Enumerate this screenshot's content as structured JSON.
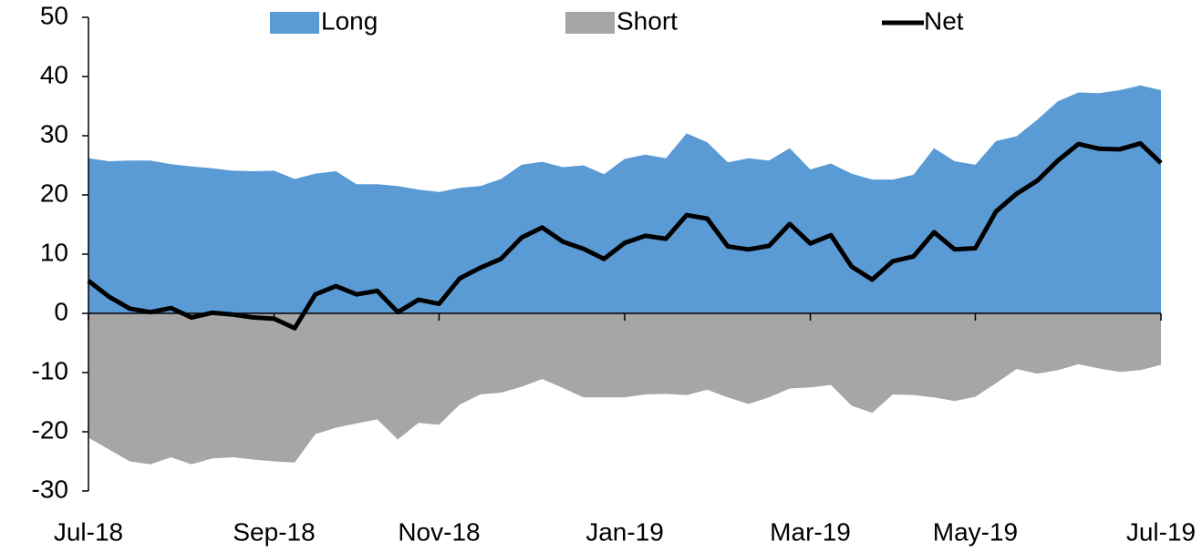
{
  "chart_data": {
    "type": "area",
    "categories": [
      "Jul-18",
      null,
      null,
      null,
      null,
      null,
      null,
      null,
      null,
      "Sep-18",
      null,
      null,
      null,
      null,
      null,
      null,
      null,
      "Nov-18",
      null,
      null,
      null,
      null,
      null,
      null,
      null,
      null,
      "Jan-19",
      null,
      null,
      null,
      null,
      null,
      null,
      null,
      null,
      "Mar-19",
      null,
      null,
      null,
      null,
      null,
      null,
      null,
      "May-19",
      null,
      null,
      null,
      null,
      null,
      null,
      null,
      null,
      "Jul-19"
    ],
    "series": [
      {
        "name": "Long",
        "type": "area",
        "color": "#5b9bd5",
        "values": [
          26.2,
          25.7,
          25.8,
          25.8,
          25.2,
          24.8,
          24.5,
          24.1,
          24.0,
          24.1,
          22.7,
          23.6,
          24.0,
          21.8,
          21.8,
          21.5,
          20.9,
          20.5,
          21.2,
          21.5,
          22.7,
          25.1,
          25.6,
          24.7,
          25.0,
          23.5,
          26.1,
          26.8,
          26.2,
          30.4,
          28.9,
          25.5,
          26.2,
          25.8,
          27.9,
          24.3,
          25.3,
          23.6,
          22.6,
          22.6,
          23.4,
          27.9,
          25.7,
          25.1,
          29.1,
          29.9,
          32.7,
          35.8,
          37.3,
          37.2,
          37.7,
          38.5,
          37.7
        ]
      },
      {
        "name": "Short",
        "type": "area",
        "color": "#a6a6a6",
        "values": [
          -21.0,
          -23.0,
          -25.0,
          -25.5,
          -24.3,
          -25.5,
          -24.5,
          -24.3,
          -24.7,
          -25.0,
          -25.2,
          -20.4,
          -19.3,
          -18.6,
          -17.9,
          -21.3,
          -18.5,
          -18.8,
          -15.4,
          -13.7,
          -13.4,
          -12.4,
          -11.1,
          -12.6,
          -14.2,
          -14.2,
          -14.2,
          -13.7,
          -13.6,
          -13.8,
          -12.9,
          -14.2,
          -15.3,
          -14.2,
          -12.7,
          -12.5,
          -12.1,
          -15.6,
          -16.8,
          -13.7,
          -13.8,
          -14.2,
          -14.8,
          -14.1,
          -11.8,
          -9.4,
          -10.2,
          -9.6,
          -8.6,
          -9.3,
          -9.9,
          -9.6,
          -8.7
        ]
      },
      {
        "name": "Net",
        "type": "line",
        "color": "#000000",
        "values": [
          5.5,
          2.8,
          0.8,
          0.2,
          0.9,
          -0.7,
          0.1,
          -0.2,
          -0.7,
          -0.9,
          -2.5,
          3.2,
          4.6,
          3.2,
          3.8,
          0.2,
          2.3,
          1.6,
          5.9,
          7.7,
          9.2,
          12.8,
          14.5,
          12.1,
          10.9,
          9.2,
          11.9,
          13.1,
          12.6,
          16.6,
          16.0,
          11.3,
          10.8,
          11.4,
          15.1,
          11.8,
          13.2,
          7.9,
          5.7,
          8.8,
          9.6,
          13.7,
          10.8,
          11.0,
          17.2,
          20.2,
          22.4,
          25.8,
          28.6,
          27.8,
          27.7,
          28.7,
          25.4
        ]
      }
    ],
    "ylim": [
      -30,
      50
    ],
    "yticks": [
      -30,
      -20,
      -10,
      0,
      10,
      20,
      30,
      40,
      50
    ],
    "grid": false,
    "legend": "top"
  }
}
